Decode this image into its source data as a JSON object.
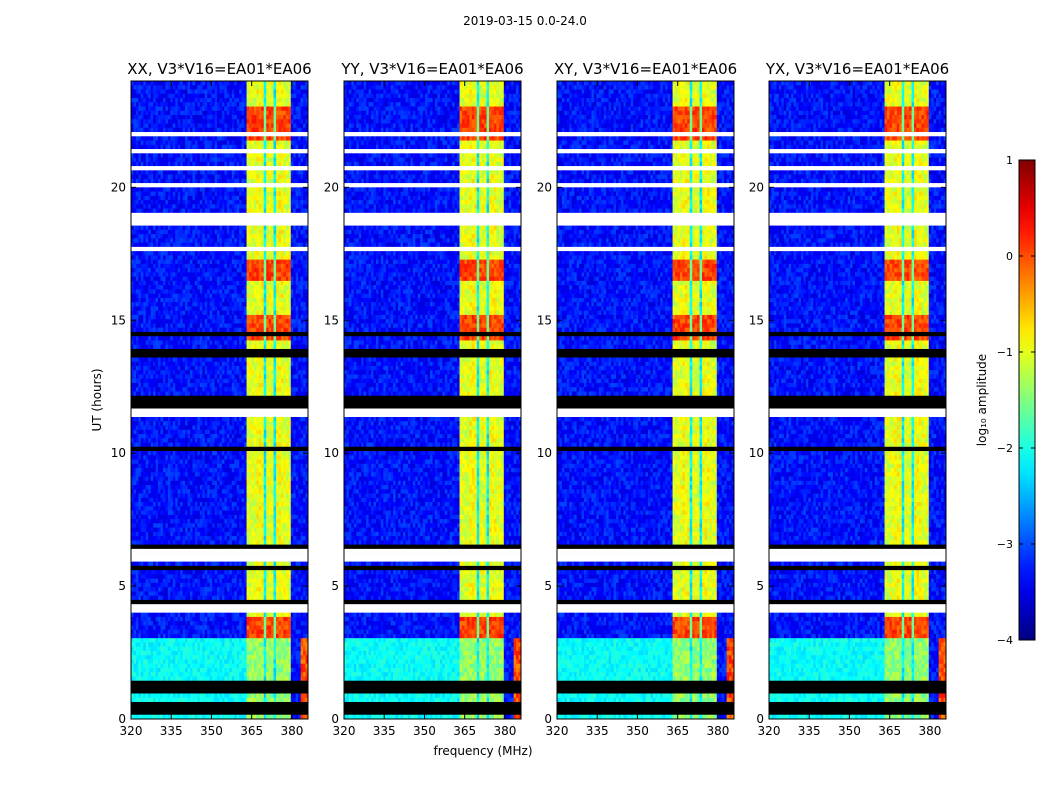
{
  "figure": {
    "suptitle": "2019-03-15 0.0-24.0",
    "xlabel": "frequency (MHz)",
    "ylabel": "UT (hours)",
    "colorbar_label": "log₁₀ amplitude"
  },
  "chart_data": {
    "type": "heatmap",
    "title": "2019-03-15 0.0-24.0",
    "xlabel": "frequency (MHz)",
    "ylabel": "UT (hours)",
    "xlim": [
      320,
      386
    ],
    "ylim": [
      0,
      24
    ],
    "x_ticks": [
      320,
      335,
      350,
      365,
      380
    ],
    "x_tick_labels": [
      "320",
      "335",
      "350",
      "365",
      "380"
    ],
    "y_ticks": [
      0,
      5,
      10,
      15,
      20
    ],
    "y_tick_labels": [
      "0",
      "5",
      "10",
      "15",
      "20"
    ],
    "colormap": "jet",
    "colorbar": {
      "label": "log10 amplitude",
      "range": [
        -4,
        1
      ],
      "ticks": [
        1,
        0,
        -1,
        -2,
        -3,
        -4
      ],
      "tick_labels": [
        "1",
        "0",
        "−1",
        "−2",
        "−3",
        "−4"
      ]
    },
    "panels": [
      {
        "title": "XX, V3*V16=EA01*EA06",
        "polarization": "XX",
        "baseline": "V3*V16=EA01*EA06"
      },
      {
        "title": "YY, V3*V16=EA01*EA06",
        "polarization": "YY",
        "baseline": "V3*V16=EA01*EA06"
      },
      {
        "title": "XY, V3*V16=EA01*EA06",
        "polarization": "XY",
        "baseline": "V3*V16=EA01*EA06"
      },
      {
        "title": "YX, V3*V16=EA01*EA06",
        "polarization": "YX",
        "baseline": "V3*V16=EA01*EA06"
      }
    ],
    "features": {
      "rfi_band_mhz": [
        363,
        380
      ],
      "rfi_band_log10_amplitude": [
        -1.3,
        0.2
      ],
      "background_log10_amplitude": -3.3,
      "strong_rfi_ut_hours": [
        [
          3.0,
          3.8
        ],
        [
          14.2,
          15.2
        ],
        [
          16.5,
          17.3
        ],
        [
          21.7,
          23.0
        ]
      ],
      "flagged_ut_hours": [
        [
          4.0,
          4.3
        ],
        [
          6.0,
          6.4
        ],
        [
          11.3,
          11.6
        ],
        [
          21.9,
          22.0
        ]
      ]
    }
  }
}
